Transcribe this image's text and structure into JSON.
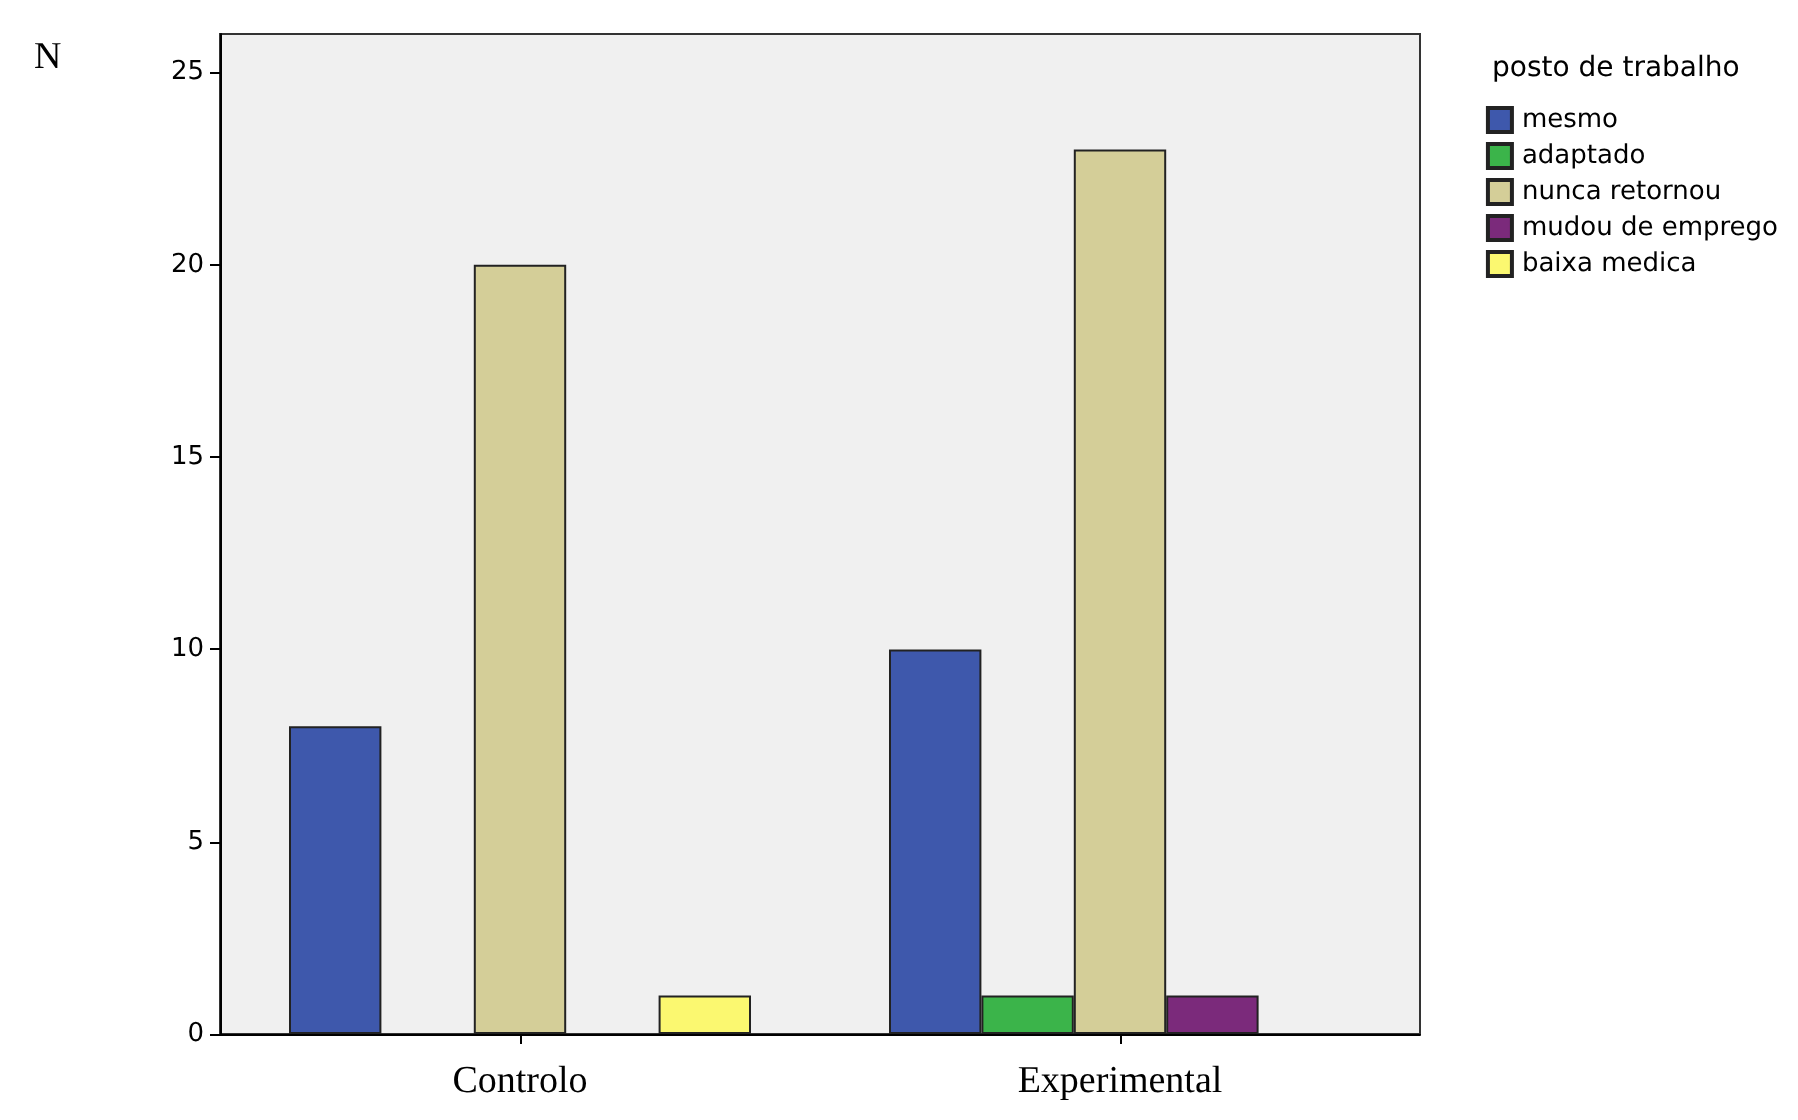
{
  "chart_data": {
    "type": "bar",
    "ylabel": "N",
    "legend_title": "posto de trabalho",
    "categories": [
      "Controlo",
      "Experimental"
    ],
    "series": [
      {
        "name": "mesmo",
        "color": "#3e58ac",
        "values": [
          8,
          10
        ]
      },
      {
        "name": "adaptado",
        "color": "#3bb44a",
        "values": [
          null,
          1
        ]
      },
      {
        "name": "nunca retornou",
        "color": "#d4ce98",
        "values": [
          20,
          23
        ]
      },
      {
        "name": "mudou de emprego",
        "color": "#7b2a7b",
        "values": [
          null,
          1
        ]
      },
      {
        "name": "baixa medica",
        "color": "#fbf870",
        "values": [
          1,
          null
        ]
      }
    ],
    "ylim": [
      0,
      26
    ],
    "yticks": [
      0,
      5,
      10,
      15,
      20,
      25
    ],
    "grid": false,
    "legend": "top right"
  }
}
